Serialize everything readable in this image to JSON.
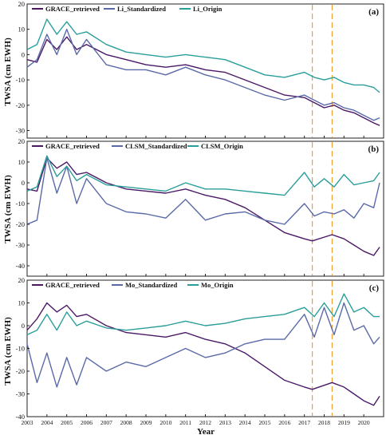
{
  "figure": {
    "x_axis_label": "Year",
    "y_axis_label": "TWSA (cm EWH)"
  },
  "chart_data": [
    {
      "type": "line",
      "panel_label": "(a)",
      "xlabel": "",
      "ylabel": "TWSA (cm EWH)",
      "xlim": [
        2003,
        2021
      ],
      "ylim": [
        -33,
        20
      ],
      "yticks": [
        -30,
        -20,
        -10,
        0,
        10,
        20
      ],
      "vlines": [
        2017.4,
        2018.4
      ],
      "vline_color": "#f0a030",
      "series": [
        {
          "name": "GRACE_retrieved",
          "color": "#4b1866",
          "x": [
            2003,
            2003.5,
            2004,
            2004.5,
            2005,
            2005.5,
            2006,
            2007,
            2008,
            2009,
            2010,
            2011,
            2012,
            2013,
            2014,
            2015,
            2016,
            2017,
            2017.5,
            2018,
            2018.5,
            2019,
            2019.5,
            2020,
            2020.5,
            2020.8
          ],
          "values": [
            -2,
            -3,
            6,
            2,
            7,
            2,
            4,
            0,
            -2,
            -4,
            -5,
            -4,
            -6,
            -7,
            -10,
            -13,
            -16,
            -17,
            -19,
            -21,
            -20,
            -22,
            -23,
            -25,
            -27,
            -28
          ]
        },
        {
          "name": "Li_Standardized",
          "color": "#5a6aa8",
          "x": [
            2003,
            2003.5,
            2004,
            2004.5,
            2005,
            2005.5,
            2006,
            2007,
            2008,
            2009,
            2010,
            2011,
            2012,
            2013,
            2014,
            2015,
            2016,
            2017,
            2017.5,
            2018,
            2018.5,
            2019,
            2019.5,
            2020,
            2020.5,
            2020.8
          ],
          "values": [
            -5,
            -2,
            8,
            0,
            10,
            0,
            6,
            -4,
            -6,
            -6,
            -8,
            -5,
            -8,
            -10,
            -13,
            -16,
            -18,
            -16,
            -18,
            -20,
            -19,
            -21,
            -22,
            -24,
            -26,
            -25
          ]
        },
        {
          "name": "Li_Origin",
          "color": "#2a9e9a",
          "x": [
            2003,
            2003.5,
            2004,
            2004.5,
            2005,
            2005.5,
            2006,
            2007,
            2008,
            2009,
            2010,
            2011,
            2012,
            2013,
            2014,
            2015,
            2016,
            2017,
            2017.5,
            2018,
            2018.5,
            2019,
            2019.5,
            2020,
            2020.5,
            2020.8
          ],
          "values": [
            2,
            4,
            14,
            8,
            13,
            8,
            9,
            4,
            1,
            0,
            -1,
            0,
            -1,
            -2,
            -5,
            -8,
            -9,
            -7,
            -9,
            -10,
            -9,
            -11,
            -12,
            -12,
            -13,
            -15
          ]
        }
      ]
    },
    {
      "type": "line",
      "panel_label": "(b)",
      "xlabel": "",
      "ylabel": "TWSA (cm EWH)",
      "xlim": [
        2003,
        2021
      ],
      "ylim": [
        -45,
        20
      ],
      "yticks": [
        -40,
        -30,
        -20,
        -10,
        0,
        10,
        20
      ],
      "vlines": [
        2017.4,
        2018.4
      ],
      "vline_color": "#f0a030",
      "series": [
        {
          "name": "GRACE_retrieved",
          "color": "#4b1866",
          "x": [
            2003,
            2003.5,
            2004,
            2004.5,
            2005,
            2005.5,
            2006,
            2007,
            2008,
            2009,
            2010,
            2011,
            2012,
            2013,
            2014,
            2015,
            2016,
            2017,
            2017.4,
            2018.4,
            2019,
            2019.5,
            2020,
            2020.5,
            2020.8
          ],
          "values": [
            -3,
            -4,
            12,
            7,
            10,
            4,
            5,
            0,
            -3,
            -4,
            -5,
            -3,
            -6,
            -8,
            -12,
            -18,
            -24,
            -27,
            -28,
            -25,
            -27,
            -30,
            -33,
            -35,
            -31
          ]
        },
        {
          "name": "CLSM_Standardized",
          "color": "#5a6aa8",
          "x": [
            2003,
            2003.5,
            2004,
            2004.5,
            2005,
            2005.5,
            2006,
            2007,
            2008,
            2009,
            2010,
            2011,
            2012,
            2013,
            2014,
            2015,
            2016,
            2017,
            2017.5,
            2018,
            2018.5,
            2019,
            2019.5,
            2020,
            2020.5,
            2020.8
          ],
          "values": [
            -20,
            -18,
            12,
            -5,
            8,
            -10,
            2,
            -10,
            -14,
            -15,
            -17,
            -8,
            -18,
            -15,
            -14,
            -18,
            -20,
            -10,
            -16,
            -14,
            -15,
            -13,
            -17,
            -10,
            -12,
            0
          ]
        },
        {
          "name": "CLSM_Origin",
          "color": "#2a9e9a",
          "x": [
            2003,
            2003.5,
            2004,
            2004.5,
            2005,
            2005.5,
            2006,
            2007,
            2008,
            2009,
            2010,
            2011,
            2012,
            2013,
            2014,
            2015,
            2016,
            2017,
            2017.5,
            2018,
            2018.5,
            2019,
            2019.5,
            2020,
            2020.5,
            2020.8
          ],
          "values": [
            -4,
            -2,
            13,
            3,
            8,
            1,
            4,
            -1,
            -2,
            -3,
            -4,
            0,
            -3,
            -3,
            -4,
            -5,
            -6,
            5,
            -2,
            2,
            -2,
            4,
            -1,
            0,
            1,
            5
          ]
        }
      ]
    },
    {
      "type": "line",
      "panel_label": "(c)",
      "xlabel": "Year",
      "ylabel": "TWSA (cm EWH)",
      "xlim": [
        2003,
        2021
      ],
      "ylim": [
        -40,
        20
      ],
      "yticks": [
        -40,
        -30,
        -20,
        -10,
        0,
        10,
        20
      ],
      "xticks": [
        "2003",
        "2004",
        "2005",
        "2006",
        "2007",
        "2008",
        "2009",
        "2010",
        "2011",
        "2012",
        "2013",
        "2014",
        "2015",
        "2016",
        "2017",
        "2018",
        "2019",
        "2020"
      ],
      "vlines": [
        2017.4,
        2018.4
      ],
      "vline_color": "#f0a030",
      "series": [
        {
          "name": "GRACE_retrieved",
          "color": "#4b1866",
          "x": [
            2003,
            2003.5,
            2004,
            2004.5,
            2005,
            2005.5,
            2006,
            2007,
            2008,
            2009,
            2010,
            2011,
            2012,
            2013,
            2014,
            2015,
            2016,
            2017,
            2017.4,
            2018.4,
            2019,
            2019.5,
            2020,
            2020.5,
            2020.8
          ],
          "values": [
            -2,
            3,
            10,
            6,
            9,
            4,
            5,
            0,
            -3,
            -4,
            -5,
            -3,
            -6,
            -8,
            -12,
            -18,
            -24,
            -27,
            -28,
            -25,
            -27,
            -30,
            -33,
            -35,
            -31
          ]
        },
        {
          "name": "Mo_Standardized",
          "color": "#5a6aa8",
          "x": [
            2003,
            2003.5,
            2004,
            2004.5,
            2005,
            2005.5,
            2006,
            2007,
            2008,
            2009,
            2010,
            2011,
            2012,
            2013,
            2014,
            2015,
            2016,
            2017,
            2017.5,
            2018,
            2018.5,
            2019,
            2019.5,
            2020,
            2020.5,
            2020.8
          ],
          "values": [
            -8,
            -25,
            -12,
            -27,
            -14,
            -26,
            -14,
            -20,
            -16,
            -18,
            -14,
            -10,
            -14,
            -12,
            -8,
            -6,
            -6,
            5,
            -5,
            8,
            -4,
            10,
            -2,
            0,
            -8,
            -5
          ]
        },
        {
          "name": "Mo_Origin",
          "color": "#2a9e9a",
          "x": [
            2003,
            2003.5,
            2004,
            2004.5,
            2005,
            2005.5,
            2006,
            2007,
            2008,
            2009,
            2010,
            2011,
            2012,
            2013,
            2014,
            2015,
            2016,
            2017,
            2017.5,
            2018,
            2018.5,
            2019,
            2019.5,
            2020,
            2020.5,
            2020.8
          ],
          "values": [
            -4,
            -2,
            5,
            -2,
            6,
            0,
            2,
            -1,
            -2,
            -1,
            0,
            2,
            0,
            1,
            3,
            4,
            5,
            8,
            4,
            10,
            4,
            14,
            6,
            8,
            4,
            4
          ]
        }
      ]
    }
  ]
}
